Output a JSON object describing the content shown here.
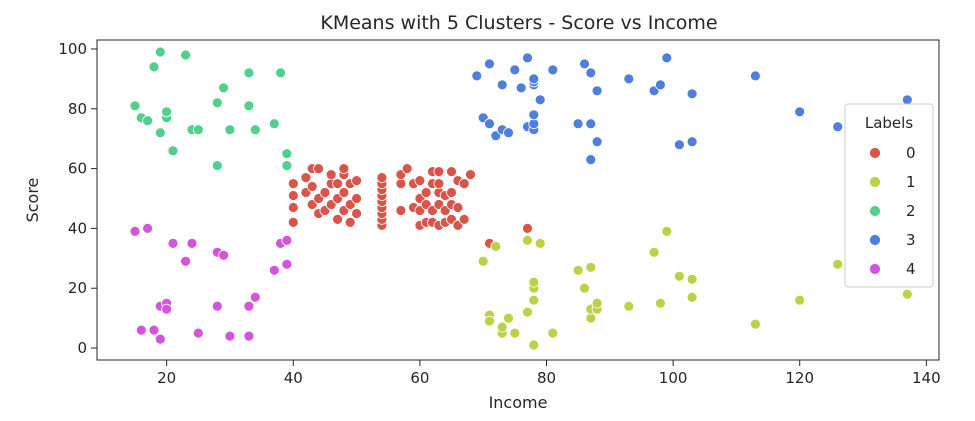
{
  "chart_data": {
    "type": "scatter",
    "title": "KMeans with 5 Clusters - Score vs Income",
    "xlabel": "Income",
    "ylabel": "Score",
    "xlim": [
      9,
      142
    ],
    "ylim": [
      -4,
      103
    ],
    "xticks": [
      20,
      40,
      60,
      80,
      100,
      120,
      140
    ],
    "yticks": [
      0,
      20,
      40,
      60,
      80,
      100
    ],
    "grid": false,
    "legend": {
      "title": "Labels",
      "position": "right"
    },
    "series": [
      {
        "name": "0",
        "color": "#d9554a",
        "points": [
          [
            40,
            42
          ],
          [
            40,
            47
          ],
          [
            40,
            51
          ],
          [
            40,
            55
          ],
          [
            42,
            52
          ],
          [
            42,
            57
          ],
          [
            43,
            48
          ],
          [
            43,
            54
          ],
          [
            43,
            60
          ],
          [
            44,
            45
          ],
          [
            44,
            50
          ],
          [
            44,
            60
          ],
          [
            45,
            46
          ],
          [
            45,
            52
          ],
          [
            46,
            48
          ],
          [
            46,
            55
          ],
          [
            46,
            58
          ],
          [
            47,
            43
          ],
          [
            47,
            50
          ],
          [
            47,
            55
          ],
          [
            48,
            46
          ],
          [
            48,
            52
          ],
          [
            48,
            58
          ],
          [
            48,
            60
          ],
          [
            49,
            42
          ],
          [
            49,
            48
          ],
          [
            49,
            55
          ],
          [
            50,
            45
          ],
          [
            50,
            50
          ],
          [
            50,
            56
          ],
          [
            54,
            41
          ],
          [
            54,
            43
          ],
          [
            54,
            45
          ],
          [
            54,
            47
          ],
          [
            54,
            49
          ],
          [
            54,
            51
          ],
          [
            54,
            53
          ],
          [
            54,
            55
          ],
          [
            54,
            57
          ],
          [
            57,
            46
          ],
          [
            57,
            55
          ],
          [
            57,
            58
          ],
          [
            58,
            60
          ],
          [
            59,
            47
          ],
          [
            59,
            55
          ],
          [
            60,
            41
          ],
          [
            60,
            46
          ],
          [
            60,
            50
          ],
          [
            60,
            56
          ],
          [
            61,
            42
          ],
          [
            61,
            48
          ],
          [
            61,
            52
          ],
          [
            62,
            42
          ],
          [
            62,
            46
          ],
          [
            62,
            55
          ],
          [
            62,
            59
          ],
          [
            63,
            41
          ],
          [
            63,
            48
          ],
          [
            63,
            52
          ],
          [
            63,
            55
          ],
          [
            63,
            59
          ],
          [
            64,
            42
          ],
          [
            64,
            46
          ],
          [
            64,
            51
          ],
          [
            65,
            43
          ],
          [
            65,
            48
          ],
          [
            65,
            52
          ],
          [
            65,
            59
          ],
          [
            66,
            41
          ],
          [
            66,
            47
          ],
          [
            66,
            56
          ],
          [
            67,
            43
          ],
          [
            67,
            55
          ],
          [
            68,
            58
          ],
          [
            71,
            35
          ],
          [
            77,
            40
          ]
        ]
      },
      {
        "name": "1",
        "color": "#b9d346",
        "points": [
          [
            70,
            29
          ],
          [
            71,
            11
          ],
          [
            71,
            9
          ],
          [
            72,
            34
          ],
          [
            73,
            5
          ],
          [
            73,
            7
          ],
          [
            74,
            10
          ],
          [
            75,
            5
          ],
          [
            77,
            12
          ],
          [
            77,
            36
          ],
          [
            78,
            1
          ],
          [
            78,
            16
          ],
          [
            78,
            20
          ],
          [
            78,
            22
          ],
          [
            79,
            35
          ],
          [
            81,
            5
          ],
          [
            85,
            26
          ],
          [
            86,
            20
          ],
          [
            87,
            10
          ],
          [
            87,
            13
          ],
          [
            87,
            27
          ],
          [
            88,
            13
          ],
          [
            88,
            15
          ],
          [
            93,
            14
          ],
          [
            97,
            32
          ],
          [
            98,
            15
          ],
          [
            99,
            39
          ],
          [
            101,
            24
          ],
          [
            103,
            17
          ],
          [
            103,
            23
          ],
          [
            113,
            8
          ],
          [
            120,
            16
          ],
          [
            126,
            28
          ],
          [
            137,
            18
          ]
        ]
      },
      {
        "name": "2",
        "color": "#4fd08c",
        "points": [
          [
            15,
            81
          ],
          [
            16,
            77
          ],
          [
            17,
            76
          ],
          [
            18,
            94
          ],
          [
            19,
            99
          ],
          [
            19,
            72
          ],
          [
            20,
            77
          ],
          [
            20,
            79
          ],
          [
            21,
            66
          ],
          [
            23,
            98
          ],
          [
            24,
            73
          ],
          [
            25,
            73
          ],
          [
            28,
            61
          ],
          [
            28,
            82
          ],
          [
            29,
            87
          ],
          [
            30,
            73
          ],
          [
            33,
            92
          ],
          [
            33,
            81
          ],
          [
            34,
            73
          ],
          [
            37,
            75
          ],
          [
            38,
            92
          ],
          [
            39,
            65
          ],
          [
            39,
            61
          ]
        ]
      },
      {
        "name": "3",
        "color": "#4f7fdc",
        "points": [
          [
            69,
            91
          ],
          [
            70,
            77
          ],
          [
            71,
            95
          ],
          [
            71,
            75
          ],
          [
            72,
            71
          ],
          [
            73,
            73
          ],
          [
            73,
            88
          ],
          [
            74,
            72
          ],
          [
            75,
            93
          ],
          [
            76,
            87
          ],
          [
            77,
            97
          ],
          [
            77,
            74
          ],
          [
            78,
            73
          ],
          [
            78,
            75
          ],
          [
            78,
            78
          ],
          [
            78,
            88
          ],
          [
            78,
            89
          ],
          [
            78,
            90
          ],
          [
            79,
            83
          ],
          [
            81,
            93
          ],
          [
            85,
            75
          ],
          [
            86,
            95
          ],
          [
            87,
            63
          ],
          [
            87,
            75
          ],
          [
            87,
            92
          ],
          [
            88,
            69
          ],
          [
            88,
            86
          ],
          [
            93,
            90
          ],
          [
            97,
            86
          ],
          [
            98,
            88
          ],
          [
            99,
            97
          ],
          [
            101,
            68
          ],
          [
            103,
            69
          ],
          [
            103,
            85
          ],
          [
            113,
            91
          ],
          [
            120,
            79
          ],
          [
            126,
            74
          ],
          [
            137,
            83
          ]
        ]
      },
      {
        "name": "4",
        "color": "#d454dc",
        "points": [
          [
            15,
            39
          ],
          [
            16,
            6
          ],
          [
            17,
            40
          ],
          [
            18,
            6
          ],
          [
            19,
            3
          ],
          [
            19,
            14
          ],
          [
            20,
            15
          ],
          [
            20,
            13
          ],
          [
            21,
            35
          ],
          [
            23,
            29
          ],
          [
            24,
            35
          ],
          [
            25,
            5
          ],
          [
            28,
            14
          ],
          [
            28,
            32
          ],
          [
            29,
            31
          ],
          [
            30,
            4
          ],
          [
            33,
            4
          ],
          [
            33,
            14
          ],
          [
            34,
            17
          ],
          [
            37,
            26
          ],
          [
            38,
            35
          ],
          [
            39,
            36
          ],
          [
            39,
            28
          ]
        ]
      }
    ]
  }
}
